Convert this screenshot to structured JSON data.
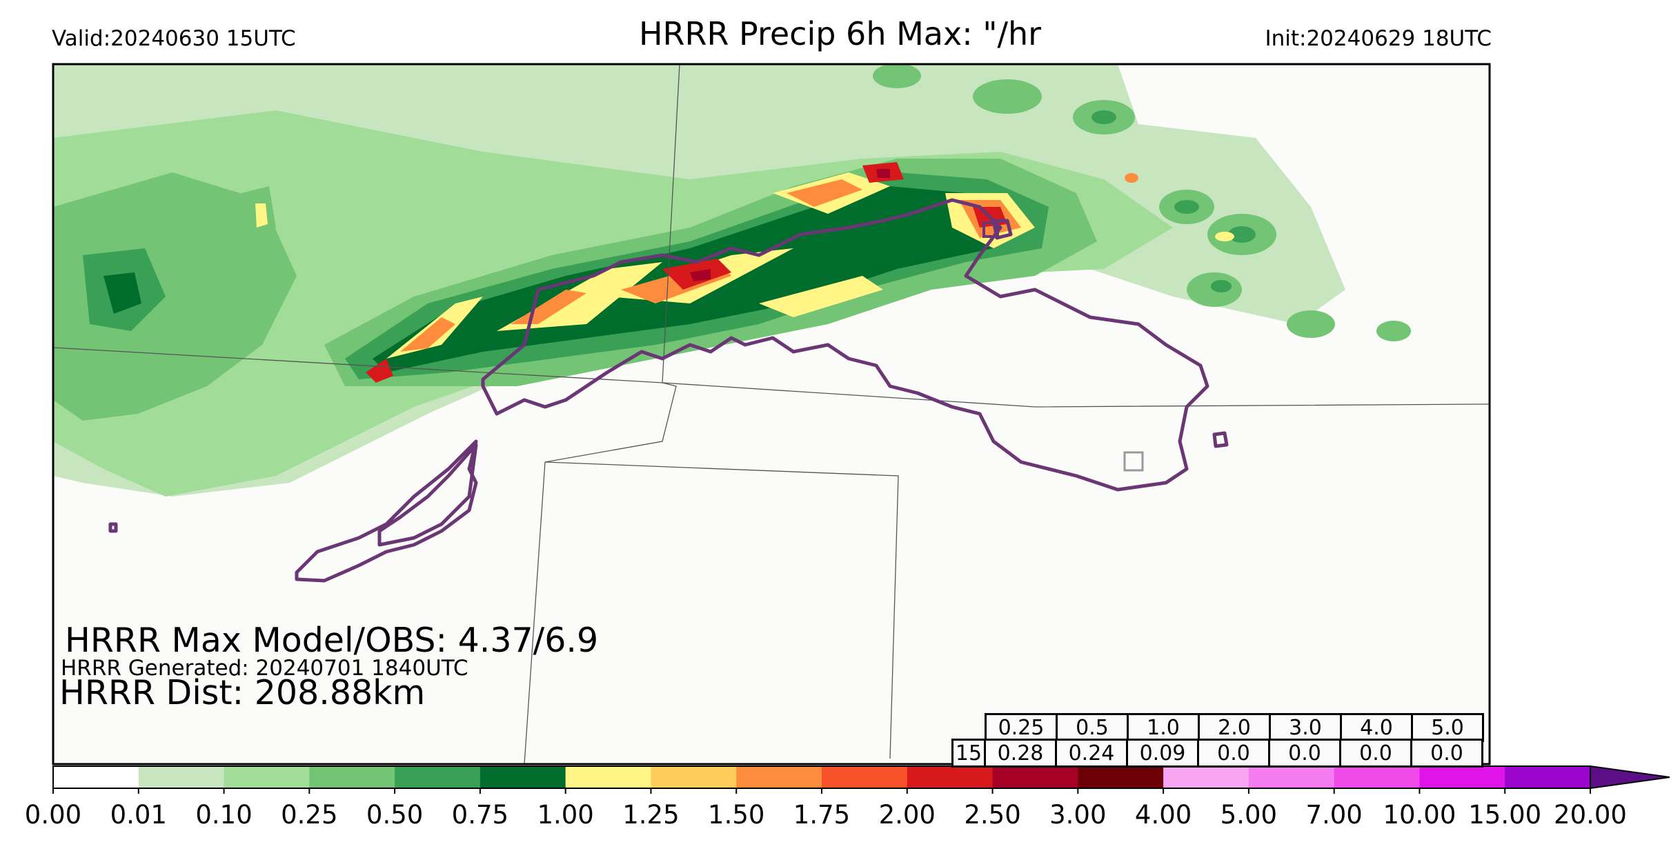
{
  "header": {
    "title": "HRRR Precip 6h Max: \"/hr",
    "valid": "Valid:20240630 15UTC",
    "init": "Init:20240629 18UTC"
  },
  "overlay": {
    "max_model_obs": "HRRR Max Model/OBS: 4.37/6.9",
    "generated": "HRRR Generated: 20240701 1840UTC",
    "dist": "HRRR Dist: 208.88km"
  },
  "stats_table": {
    "thresholds": [
      "0.25",
      "0.5",
      "1.0",
      "2.0",
      "3.0",
      "4.0",
      "5.0"
    ],
    "row_label": "15",
    "values": [
      "0.28",
      "0.24",
      "0.09",
      "0.0",
      "0.0",
      "0.0",
      "0.0"
    ]
  },
  "colorbar": {
    "labels": [
      "0.00",
      "0.01",
      "0.10",
      "0.25",
      "0.50",
      "0.75",
      "1.00",
      "1.25",
      "1.50",
      "1.75",
      "2.00",
      "2.50",
      "3.00",
      "4.00",
      "5.00",
      "7.00",
      "10.00",
      "15.00",
      "20.00"
    ],
    "colors": [
      "#ffffff",
      "#c7e6c0",
      "#a1dd98",
      "#74c476",
      "#39a055",
      "#006d2c",
      "#fff685",
      "#fdcc5b",
      "#fd8d3c",
      "#f7512a",
      "#d7191c",
      "#a50026",
      "#6b0006",
      "#f9a6f2",
      "#f57cf0",
      "#f04ae9",
      "#de14e8",
      "#9c05cc"
    ],
    "extend_color": "#5b0e85"
  },
  "map": {
    "background": "#fbfbfa",
    "obs_contour_color": "#6a3674",
    "border_color": "#555555"
  }
}
